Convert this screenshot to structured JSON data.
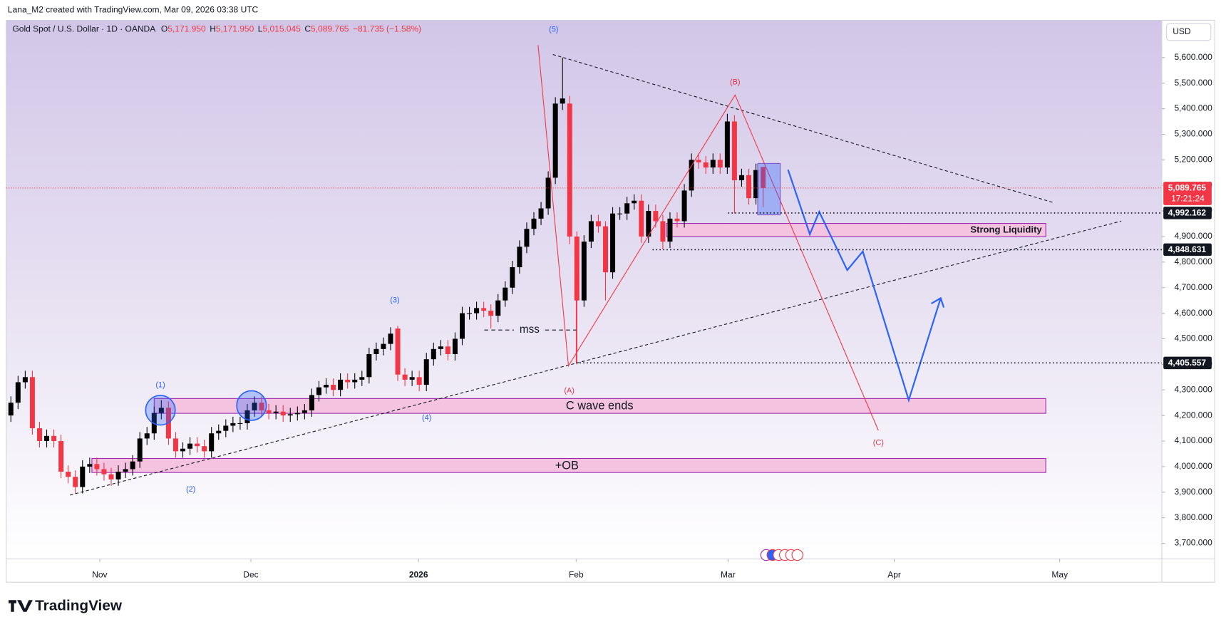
{
  "header": {
    "credit": "Lana_M2 created with TradingView.com, Mar 09, 2026 03:38 UTC",
    "logo_text": "TradingView",
    "currency_button": "USD"
  },
  "chart_data": {
    "type": "candlestick",
    "title": "Gold Spot / U.S. Dollar · 1D · OANDA",
    "ohlc_legend": [
      {
        "key": "O",
        "label": "5,171.950"
      },
      {
        "key": "H",
        "label": "5,171.950"
      },
      {
        "key": "L",
        "label": "5,015.045"
      },
      {
        "key": "C",
        "label": "5,089.765"
      }
    ],
    "change": "−81.735 (−1.58%)",
    "up_color": "#000000",
    "down_color": "#f23645",
    "open": [
      4200,
      4250,
      4330,
      4350,
      4150,
      4100,
      4120,
      4100,
      3980,
      3960,
      3920,
      4000,
      4010,
      3990,
      3970,
      3950,
      3980,
      3990,
      4020,
      4110,
      4130,
      4210,
      4230,
      4110,
      4060,
      4070,
      4090,
      4080,
      4060,
      4130,
      4140,
      4160,
      4170,
      4170,
      4220,
      4250,
      4220,
      4210,
      4215,
      4200,
      4205,
      4210,
      4220,
      4280,
      4310,
      4320,
      4300,
      4340,
      4330,
      4340,
      4350,
      4440,
      4460,
      4480,
      4540,
      4360,
      4340,
      4350,
      4320,
      4420,
      4460,
      4470,
      4440,
      4500,
      4600,
      4600,
      4620,
      4610,
      4590,
      4650,
      4700,
      4780,
      4860,
      4930,
      4970,
      5010,
      5130,
      5420,
      5420,
      4900,
      4650,
      4880,
      4960,
      4940,
      4760,
      4990,
      4990,
      5030,
      5040,
      4900,
      5000,
      4960,
      4880,
      4970,
      4960,
      5080,
      5200,
      5190,
      5170,
      5200,
      5170,
      5350,
      5120,
      5140,
      5050,
      5171.95
    ],
    "high": [
      4275,
      4355,
      4375,
      4375,
      4175,
      4145,
      4145,
      4125,
      4005,
      3985,
      4025,
      4035,
      4035,
      4015,
      3995,
      4005,
      4015,
      4045,
      4135,
      4155,
      4235,
      4260,
      4255,
      4135,
      4095,
      4115,
      4115,
      4105,
      4155,
      4165,
      4185,
      4195,
      4195,
      4245,
      4275,
      4275,
      4245,
      4240,
      4240,
      4230,
      4235,
      4245,
      4305,
      4335,
      4345,
      4345,
      4365,
      4365,
      4365,
      4375,
      4465,
      4485,
      4505,
      4545,
      4550,
      4385,
      4375,
      4375,
      4445,
      4485,
      4495,
      4495,
      4525,
      4625,
      4625,
      4645,
      4645,
      4635,
      4675,
      4725,
      4805,
      4885,
      4955,
      4995,
      5035,
      5155,
      5445,
      5600,
      5450,
      4920,
      4905,
      4985,
      4985,
      4960,
      5015,
      5015,
      5055,
      5065,
      5065,
      5025,
      5025,
      4985,
      4995,
      4995,
      5105,
      5225,
      5225,
      5215,
      5225,
      5225,
      5380,
      5375,
      5165,
      5165,
      5185,
      5171.95
    ],
    "low": [
      4175,
      4225,
      4305,
      4125,
      4075,
      4075,
      4075,
      3955,
      3935,
      3895,
      3895,
      3975,
      3965,
      3945,
      3925,
      3925,
      3955,
      3965,
      3995,
      4085,
      4105,
      4185,
      4085,
      4035,
      4035,
      4045,
      4055,
      4035,
      4035,
      4105,
      4115,
      4135,
      4145,
      4145,
      4195,
      4195,
      4185,
      4185,
      4175,
      4175,
      4180,
      4185,
      4195,
      4255,
      4285,
      4275,
      4275,
      4305,
      4305,
      4315,
      4325,
      4415,
      4435,
      4455,
      4335,
      4315,
      4315,
      4295,
      4295,
      4395,
      4435,
      4415,
      4415,
      4475,
      4575,
      4575,
      4585,
      4540,
      4565,
      4625,
      4675,
      4755,
      4835,
      4905,
      4945,
      4985,
      5105,
      5395,
      4870,
      4400,
      4625,
      4855,
      4915,
      4650,
      4735,
      4965,
      4965,
      5005,
      4875,
      4875,
      4935,
      4850,
      4855,
      4935,
      4935,
      5055,
      5165,
      5145,
      5145,
      5145,
      5145,
      4990,
      5095,
      5025,
      5025,
      5015.045
    ],
    "close": [
      4250,
      4330,
      4350,
      4150,
      4100,
      4120,
      4100,
      3980,
      3960,
      3920,
      4000,
      4010,
      3990,
      3970,
      3950,
      3980,
      3990,
      4020,
      4110,
      4130,
      4210,
      4230,
      4110,
      4060,
      4070,
      4090,
      4080,
      4060,
      4130,
      4140,
      4160,
      4170,
      4170,
      4220,
      4250,
      4220,
      4210,
      4215,
      4200,
      4205,
      4210,
      4220,
      4280,
      4310,
      4320,
      4300,
      4340,
      4330,
      4340,
      4350,
      4440,
      4460,
      4480,
      4520,
      4360,
      4340,
      4350,
      4320,
      4420,
      4460,
      4470,
      4440,
      4500,
      4600,
      4600,
      4620,
      4610,
      4590,
      4650,
      4700,
      4780,
      4860,
      4930,
      4970,
      5010,
      5130,
      5420,
      5440,
      4900,
      4650,
      4880,
      4960,
      4940,
      4760,
      4990,
      4990,
      5030,
      5040,
      4900,
      5000,
      4960,
      4880,
      4970,
      4960,
      5080,
      5200,
      5190,
      5170,
      5200,
      5170,
      5350,
      5120,
      5140,
      5050,
      5160,
      5089.765
    ],
    "xlim": [
      -0.65,
      160.65
    ],
    "xticks": [
      {
        "value": 12.4,
        "label": "Nov"
      },
      {
        "value": 33.5,
        "label": "Dec"
      },
      {
        "value": 56.9,
        "label": "2026"
      },
      {
        "value": 78.9,
        "label": "Feb"
      },
      {
        "value": 100.1,
        "label": "Mar"
      },
      {
        "value": 123.3,
        "label": "Apr"
      },
      {
        "value": 146.4,
        "label": "May"
      }
    ],
    "ylim": [
      3639,
      5746
    ],
    "yticks": [
      {
        "value": 3700,
        "label": "3,700.000"
      },
      {
        "value": 3800,
        "label": "3,800.000"
      },
      {
        "value": 3900,
        "label": "3,900.000"
      },
      {
        "value": 4000,
        "label": "4,000.000"
      },
      {
        "value": 4100,
        "label": "4,100.000"
      },
      {
        "value": 4200,
        "label": "4,200.000"
      },
      {
        "value": 4300,
        "label": "4,300.000"
      },
      {
        "value": 4400,
        "label": "4,400.000"
      },
      {
        "value": 4500,
        "label": "4,500.000"
      },
      {
        "value": 4600,
        "label": "4,600.000"
      },
      {
        "value": 4700,
        "label": "4,700.000"
      },
      {
        "value": 4800,
        "label": "4,800.000"
      },
      {
        "value": 4900,
        "label": "4,900.000"
      },
      {
        "value": 5000,
        "label": "5,000.000"
      },
      {
        "value": 5100,
        "label": "5,100.000"
      },
      {
        "value": 5200,
        "label": "5,200.000"
      },
      {
        "value": 5300,
        "label": "5,300.000"
      },
      {
        "value": 5400,
        "label": "5,400.000"
      },
      {
        "value": 5500,
        "label": "5,500.000"
      },
      {
        "value": 5600,
        "label": "5,600.000"
      }
    ],
    "grid": false,
    "last_price": {
      "value": 5089.765,
      "label": "5,089.765",
      "countdown": "17:21:24"
    },
    "price_lines": [
      {
        "value": 4992.162,
        "label": "4,992.162"
      },
      {
        "value": 4848.631,
        "label": "4,848.631"
      },
      {
        "value": 4405.557,
        "label": "4,405.557"
      }
    ],
    "annotations": [
      "(1)",
      "(2)",
      "(3)",
      "(4)",
      "(5)",
      "(A)",
      "(B)",
      "(C)",
      "mss",
      "Strong Liquidity",
      "C wave ends",
      "+OB"
    ]
  }
}
